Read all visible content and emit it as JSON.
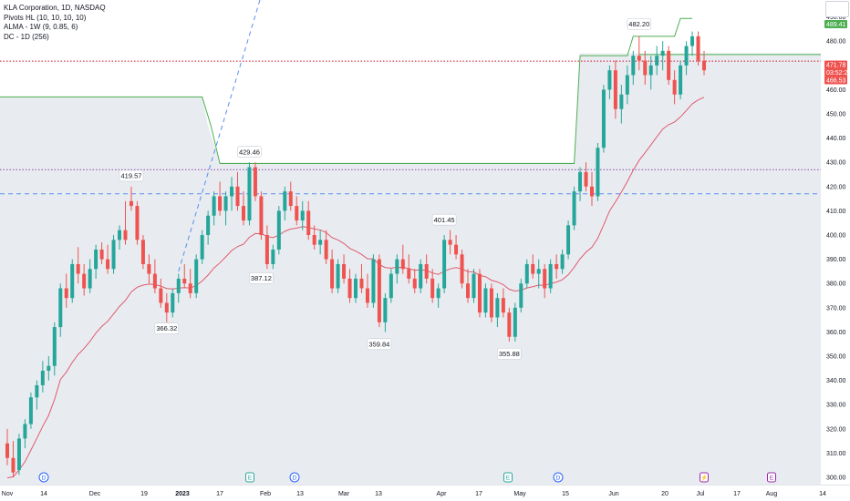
{
  "legend": {
    "title": "KLA Corporation, 1D, NASDAQ",
    "pivots": "Pivots HL (10, 10, 10, 10)",
    "alma": "ALMA - 1W (9, 0.85, 6)",
    "dc": "DC - 1D (256)"
  },
  "colors": {
    "up": "#26a69a",
    "down": "#ef5350",
    "alma": "#e05a6e",
    "channel": "#4caf50",
    "dashed": "#5b8def",
    "dotted_red": "#d0112b",
    "dotted_purple": "#8e44ad",
    "fill": "#d6dce4"
  },
  "chart_data": {
    "type": "candlestick",
    "title": "KLA Corporation, 1D, NASDAQ",
    "x_ticks": [
      "Nov",
      "14",
      "Dec",
      "19",
      "2023",
      "17",
      "Feb",
      "13",
      "Mar",
      "13",
      "Apr",
      "17",
      "May",
      "15",
      "Jun",
      "20",
      "Jul",
      "17",
      "Aug",
      "14"
    ],
    "y_ticks": [
      "300.00",
      "310.00",
      "320.00",
      "330.00",
      "340.00",
      "350.00",
      "360.00",
      "370.00",
      "380.00",
      "390.00",
      "400.00",
      "410.00",
      "420.00",
      "430.00",
      "440.00",
      "450.00",
      "460.00",
      "470.00",
      "480.00",
      "490.00"
    ],
    "ylim": [
      297,
      497
    ],
    "price_badges": [
      {
        "label": "489.41",
        "value": 489.41,
        "color": "#4caf50"
      },
      {
        "label": "471.78",
        "value": 471.78,
        "color": "#ef5350"
      },
      {
        "label": "03:52:29",
        "value": 469.5,
        "color": "#ef5350"
      },
      {
        "label": "466.53",
        "value": 466.53,
        "color": "#ef5350"
      }
    ],
    "pivot_labels": [
      {
        "label": "419.57",
        "value": 419.57,
        "pos": "above",
        "bar": 21
      },
      {
        "label": "366.32",
        "value": 366.32,
        "pos": "below",
        "bar": 27
      },
      {
        "label": "429.46",
        "value": 429.46,
        "pos": "above",
        "bar": 41
      },
      {
        "label": "387.12",
        "value": 387.12,
        "pos": "below",
        "bar": 43
      },
      {
        "label": "359.84",
        "value": 359.84,
        "pos": "below",
        "bar": 63
      },
      {
        "label": "401.45",
        "value": 401.45,
        "pos": "above",
        "bar": 74
      },
      {
        "label": "355.88",
        "value": 355.88,
        "pos": "below",
        "bar": 85
      },
      {
        "label": "482.20",
        "value": 482.2,
        "pos": "above",
        "bar": 107
      }
    ],
    "events": [
      {
        "label": "D",
        "date": "Nov 23",
        "color": "#2962ff"
      },
      {
        "label": "E",
        "date": "Jan 25",
        "color": "#26a69a"
      },
      {
        "label": "D",
        "date": "Feb 7",
        "color": "#2962ff"
      },
      {
        "label": "E",
        "date": "Apr 26",
        "color": "#26a69a"
      },
      {
        "label": "D",
        "date": "May 12",
        "color": "#2962ff"
      },
      {
        "label": "⚡",
        "date": "Jul 3",
        "color": "#9c27b0"
      },
      {
        "label": "E",
        "date": "Jul 27",
        "color": "#9c27b0"
      }
    ],
    "horizontal_lines": [
      {
        "value": 471.78,
        "style": "dotted",
        "color": "#d0112b"
      },
      {
        "value": 427.0,
        "style": "dotted",
        "color": "#8e44ad"
      },
      {
        "value": 417.0,
        "style": "dashed",
        "color": "#5b8def"
      }
    ],
    "ohlc": [
      [
        314,
        320,
        305,
        308
      ],
      [
        308,
        315,
        300,
        302
      ],
      [
        303,
        318,
        301,
        316
      ],
      [
        316,
        324,
        312,
        322
      ],
      [
        322,
        335,
        320,
        333
      ],
      [
        333,
        340,
        328,
        338
      ],
      [
        338,
        348,
        335,
        344
      ],
      [
        344,
        350,
        340,
        346
      ],
      [
        346,
        364,
        342,
        362
      ],
      [
        362,
        380,
        358,
        378
      ],
      [
        378,
        384,
        370,
        374
      ],
      [
        374,
        390,
        372,
        388
      ],
      [
        388,
        395,
        380,
        384
      ],
      [
        384,
        388,
        375,
        378
      ],
      [
        378,
        390,
        376,
        386
      ],
      [
        386,
        396,
        382,
        394
      ],
      [
        394,
        397,
        388,
        390
      ],
      [
        390,
        396,
        384,
        386
      ],
      [
        386,
        400,
        384,
        398
      ],
      [
        398,
        404,
        394,
        402
      ],
      [
        402,
        414,
        396,
        398
      ],
      [
        414,
        420,
        410,
        412
      ],
      [
        412,
        414,
        396,
        398
      ],
      [
        398,
        400,
        386,
        388
      ],
      [
        388,
        392,
        380,
        384
      ],
      [
        384,
        390,
        376,
        378
      ],
      [
        378,
        382,
        370,
        372
      ],
      [
        372,
        376,
        364,
        368
      ],
      [
        368,
        378,
        366,
        376
      ],
      [
        376,
        384,
        372,
        382
      ],
      [
        382,
        388,
        378,
        380
      ],
      [
        380,
        386,
        374,
        376
      ],
      [
        376,
        392,
        374,
        390
      ],
      [
        390,
        402,
        388,
        400
      ],
      [
        400,
        410,
        396,
        408
      ],
      [
        408,
        418,
        404,
        416
      ],
      [
        416,
        422,
        408,
        410
      ],
      [
        410,
        418,
        404,
        416
      ],
      [
        416,
        424,
        410,
        420
      ],
      [
        420,
        426,
        410,
        412
      ],
      [
        412,
        418,
        404,
        406
      ],
      [
        406,
        430,
        404,
        428
      ],
      [
        428,
        430,
        414,
        416
      ],
      [
        416,
        418,
        398,
        400
      ],
      [
        400,
        404,
        386,
        388
      ],
      [
        388,
        396,
        386,
        394
      ],
      [
        394,
        412,
        392,
        410
      ],
      [
        410,
        420,
        406,
        418
      ],
      [
        418,
        422,
        410,
        412
      ],
      [
        412,
        416,
        404,
        406
      ],
      [
        406,
        414,
        402,
        410
      ],
      [
        410,
        414,
        398,
        400
      ],
      [
        400,
        404,
        394,
        396
      ],
      [
        396,
        402,
        392,
        398
      ],
      [
        398,
        402,
        388,
        390
      ],
      [
        390,
        394,
        376,
        378
      ],
      [
        378,
        390,
        376,
        388
      ],
      [
        388,
        392,
        380,
        382
      ],
      [
        382,
        386,
        372,
        374
      ],
      [
        374,
        384,
        372,
        382
      ],
      [
        382,
        388,
        376,
        378
      ],
      [
        378,
        384,
        370,
        372
      ],
      [
        372,
        392,
        370,
        390
      ],
      [
        390,
        392,
        362,
        364
      ],
      [
        364,
        376,
        360,
        374
      ],
      [
        374,
        386,
        372,
        384
      ],
      [
        384,
        392,
        380,
        390
      ],
      [
        390,
        396,
        384,
        386
      ],
      [
        386,
        392,
        380,
        382
      ],
      [
        382,
        386,
        376,
        378
      ],
      [
        378,
        390,
        376,
        388
      ],
      [
        388,
        392,
        380,
        382
      ],
      [
        382,
        386,
        372,
        374
      ],
      [
        374,
        380,
        370,
        378
      ],
      [
        378,
        400,
        376,
        398
      ],
      [
        398,
        402,
        392,
        396
      ],
      [
        396,
        400,
        390,
        392
      ],
      [
        392,
        394,
        378,
        380
      ],
      [
        380,
        386,
        372,
        374
      ],
      [
        374,
        386,
        372,
        384
      ],
      [
        384,
        386,
        366,
        368
      ],
      [
        368,
        380,
        366,
        378
      ],
      [
        378,
        380,
        364,
        366
      ],
      [
        366,
        376,
        362,
        374
      ],
      [
        374,
        378,
        366,
        368
      ],
      [
        368,
        370,
        356,
        358
      ],
      [
        358,
        372,
        356,
        370
      ],
      [
        370,
        382,
        368,
        380
      ],
      [
        380,
        390,
        378,
        388
      ],
      [
        388,
        392,
        382,
        384
      ],
      [
        384,
        390,
        378,
        386
      ],
      [
        386,
        388,
        374,
        378
      ],
      [
        378,
        390,
        376,
        388
      ],
      [
        388,
        392,
        382,
        386
      ],
      [
        386,
        394,
        384,
        392
      ],
      [
        392,
        406,
        390,
        404
      ],
      [
        404,
        420,
        402,
        418
      ],
      [
        418,
        428,
        414,
        426
      ],
      [
        426,
        430,
        418,
        420
      ],
      [
        420,
        426,
        412,
        416
      ],
      [
        416,
        438,
        414,
        436
      ],
      [
        436,
        462,
        434,
        460
      ],
      [
        460,
        470,
        456,
        468
      ],
      [
        468,
        472,
        448,
        452
      ],
      [
        452,
        462,
        446,
        458
      ],
      [
        458,
        470,
        454,
        466
      ],
      [
        466,
        476,
        462,
        474
      ],
      [
        474,
        482,
        468,
        472
      ],
      [
        472,
        476,
        462,
        466
      ],
      [
        466,
        474,
        460,
        470
      ],
      [
        470,
        478,
        466,
        474
      ],
      [
        474,
        480,
        468,
        476
      ],
      [
        476,
        478,
        462,
        464
      ],
      [
        464,
        468,
        454,
        458
      ],
      [
        458,
        472,
        456,
        470
      ],
      [
        470,
        480,
        466,
        478
      ],
      [
        478,
        484,
        474,
        482
      ],
      [
        482,
        484,
        470,
        472
      ],
      [
        472,
        476,
        466,
        468
      ]
    ]
  }
}
